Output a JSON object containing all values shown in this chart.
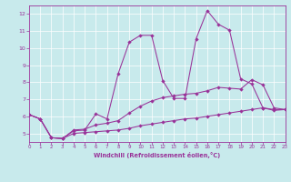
{
  "xlabel": "Windchill (Refroidissement éolien,°C)",
  "bg_color": "#c8eaec",
  "line_color": "#993399",
  "grid_color": "#b0d8dc",
  "xlim": [
    0,
    23
  ],
  "ylim": [
    4.5,
    12.5
  ],
  "yticks": [
    5,
    6,
    7,
    8,
    9,
    10,
    11,
    12
  ],
  "xticks": [
    0,
    1,
    2,
    3,
    4,
    5,
    6,
    7,
    8,
    9,
    10,
    11,
    12,
    13,
    14,
    15,
    16,
    17,
    18,
    19,
    20,
    21,
    22,
    23
  ],
  "s1_x": [
    0,
    1,
    2,
    3,
    4,
    5,
    6,
    7,
    8,
    9,
    10,
    11,
    12,
    13,
    14,
    15,
    16,
    17,
    18,
    19,
    20,
    21,
    22,
    23
  ],
  "s1_y": [
    6.1,
    5.85,
    4.75,
    4.7,
    5.0,
    5.05,
    5.1,
    5.15,
    5.2,
    5.3,
    5.45,
    5.55,
    5.65,
    5.75,
    5.85,
    5.9,
    6.0,
    6.1,
    6.2,
    6.3,
    6.4,
    6.5,
    6.35,
    6.4
  ],
  "s2_x": [
    0,
    1,
    2,
    3,
    4,
    5,
    6,
    7,
    8,
    9,
    10,
    11,
    12,
    13,
    14,
    15,
    16,
    17,
    18,
    19,
    20,
    21,
    22,
    23
  ],
  "s2_y": [
    6.1,
    5.85,
    4.75,
    4.7,
    5.2,
    5.25,
    5.5,
    5.6,
    5.75,
    6.2,
    6.6,
    6.9,
    7.1,
    7.2,
    7.3,
    7.35,
    7.5,
    7.7,
    7.65,
    7.6,
    8.15,
    7.85,
    6.5,
    6.4
  ],
  "s3_x": [
    0,
    1,
    2,
    3,
    4,
    5,
    6,
    7,
    8,
    9,
    10,
    11,
    12,
    13,
    14,
    15,
    16,
    17,
    18,
    19,
    20,
    21,
    22,
    23
  ],
  "s3_y": [
    6.1,
    5.85,
    4.75,
    4.7,
    5.15,
    5.2,
    6.15,
    5.85,
    8.5,
    10.35,
    10.75,
    10.75,
    8.1,
    7.05,
    7.05,
    10.55,
    12.2,
    11.4,
    11.05,
    8.2,
    7.9,
    6.5,
    6.4,
    6.4
  ]
}
